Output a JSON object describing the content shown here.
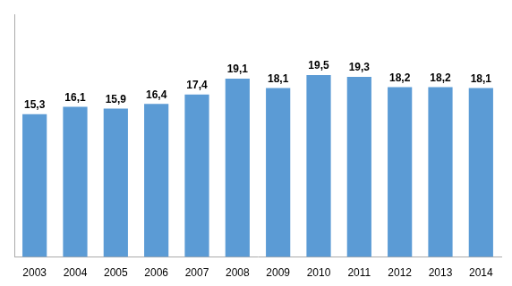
{
  "chart_data": {
    "type": "bar",
    "categories": [
      "2003",
      "2004",
      "2005",
      "2006",
      "2007",
      "2008",
      "2009",
      "2010",
      "2011",
      "2012",
      "2013",
      "2014"
    ],
    "values": [
      15.3,
      16.1,
      15.9,
      16.4,
      17.4,
      19.1,
      18.1,
      19.5,
      19.3,
      18.2,
      18.2,
      18.1
    ],
    "value_labels": [
      "15,3",
      "16,1",
      "15,9",
      "16,4",
      "17,4",
      "19,1",
      "18,1",
      "19,5",
      "19,3",
      "18,2",
      "18,2",
      "18,1"
    ],
    "color": "#5b9bd5",
    "ylim": [
      0,
      26
    ],
    "data_labels": true,
    "tick_labels": "x",
    "grid": false
  }
}
